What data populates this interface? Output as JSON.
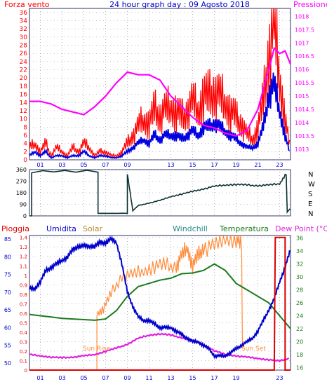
{
  "colors": {
    "wind_red": "#ff0000",
    "gust_blue": "#0000e0",
    "pressure_magenta": "#ff00ff",
    "humidity_blue": "#0000cc",
    "solar_orange": "#ff8c3a",
    "temp_green": "#1a7a1a",
    "dewpoint_magenta": "#e020e0",
    "rain_red": "#dd0000",
    "direction_dark": "#0b3030",
    "grid": "#8080a0",
    "title_blue": "#0000cc",
    "solar_label": "#b5892a",
    "windchill_label": "#2a8a8a"
  },
  "top_panel": {
    "title": "24 hour graph day : 09 Agosto 2018",
    "left_label": "Forza vento",
    "right_label": "Pressione",
    "left_ticks": [
      "0",
      "2",
      "4",
      "6",
      "8",
      "10",
      "12",
      "14",
      "16",
      "18",
      "20",
      "22",
      "24",
      "26",
      "28",
      "30",
      "32",
      "34",
      "36"
    ],
    "right_ticks": [
      "1013",
      "1013.5",
      "1014",
      "1014.5",
      "1015",
      "1015.5",
      "1016",
      "1016.5",
      "1017",
      "1017.5",
      "1018"
    ],
    "hour_ticks": [
      "01",
      "03",
      "05",
      "07",
      "09",
      "13",
      "15",
      "17",
      "19",
      "21",
      "23"
    ]
  },
  "direction_panel": {
    "left_ticks": [
      "0",
      "90",
      "180",
      "270",
      "360"
    ],
    "compass": [
      "N",
      "W",
      "S",
      "E",
      "N"
    ]
  },
  "bottom_panel": {
    "labels": {
      "rain": "Pioggia",
      "humidity": "Umidita",
      "solar": "Solar",
      "windchill": "Windchill",
      "temperature": "Temperatura",
      "dewpoint": "Dew Point (°C)"
    },
    "rain_ticks": [
      "0",
      "0.1",
      "0.2",
      "0.3",
      "0.4",
      "0.5",
      "0.6",
      "0.7",
      "0.8",
      "0.9",
      "1",
      "1.1",
      "1.2",
      "1.3",
      "1.4"
    ],
    "humidity_ticks": [
      "50",
      "55",
      "60",
      "65",
      "70",
      "75",
      "80",
      "85"
    ],
    "temp_ticks": [
      "16",
      "18",
      "20",
      "22",
      "24",
      "26",
      "28",
      "30",
      "32",
      "34",
      "36"
    ],
    "hour_ticks": [
      "01",
      "03",
      "05",
      "07",
      "09",
      "11",
      "13",
      "15",
      "17",
      "19",
      "23"
    ],
    "sunrise": "Sun Rise",
    "sunset": "Sun Set"
  },
  "chart_data": [
    {
      "type": "line",
      "title": "24 hour graph day : 09 Agosto 2018",
      "x_unit": "hour",
      "xlim": [
        0,
        24
      ],
      "ylabel": "Forza vento",
      "ylim": [
        0,
        37
      ],
      "y2label": "Pressione",
      "y2lim": [
        1012.6,
        1018.3
      ],
      "series": [
        {
          "axis": "left",
          "x": [
            0,
            0.5,
            1,
            1.5,
            2,
            2.5,
            3,
            3.5,
            4,
            4.5,
            5,
            5.5,
            6,
            6.5,
            7,
            7.5,
            8,
            8.5,
            9,
            9.5,
            10,
            10.5,
            11,
            11.5,
            12,
            12.5,
            13,
            13.5,
            14,
            14.5,
            15,
            15.5,
            16,
            16.5,
            17,
            17.5,
            18,
            18.5,
            19,
            19.5,
            20,
            20.5,
            21,
            21.5,
            22,
            22.5,
            23,
            23.5,
            24
          ],
          "values": [
            3,
            4,
            2,
            4,
            1,
            3,
            2,
            1,
            3,
            2,
            4,
            3,
            1,
            2,
            2,
            1,
            1,
            2,
            4,
            6,
            8,
            10,
            9,
            12,
            11,
            12,
            13,
            12,
            10,
            12,
            14,
            12,
            16,
            15,
            17,
            15,
            14,
            12,
            10,
            9,
            6,
            5,
            8,
            14,
            26,
            34,
            20,
            10,
            2
          ]
        },
        {
          "axis": "left",
          "x": [
            0,
            0.5,
            1,
            1.5,
            2,
            2.5,
            3,
            3.5,
            4,
            4.5,
            5,
            5.5,
            6,
            6.5,
            7,
            7.5,
            8,
            8.5,
            9,
            9.5,
            10,
            10.5,
            11,
            11.5,
            12,
            12.5,
            13,
            13.5,
            14,
            14.5,
            15,
            15.5,
            16,
            16.5,
            17,
            17.5,
            18,
            18.5,
            19,
            19.5,
            20,
            20.5,
            21,
            21.5,
            22,
            22.5,
            23,
            23.5,
            24
          ],
          "values": [
            1,
            2,
            1,
            2,
            0.5,
            1,
            1,
            0.5,
            1,
            1,
            2,
            1,
            0.5,
            1,
            1,
            0.5,
            0.5,
            1,
            2,
            3,
            4,
            5,
            4,
            6,
            5,
            6,
            6,
            6,
            5,
            6,
            7,
            6,
            8,
            8,
            9,
            8,
            7,
            6,
            5,
            4,
            3,
            3,
            4,
            8,
            16,
            18,
            12,
            6,
            1
          ]
        },
        {
          "axis": "right",
          "x": [
            0,
            1,
            2,
            3,
            4,
            5,
            6,
            7,
            8,
            9,
            10,
            11,
            12,
            13,
            14,
            15,
            16,
            17,
            18,
            19,
            20,
            21,
            22,
            22.5,
            23,
            23.5,
            24
          ],
          "values": [
            1014.8,
            1014.8,
            1014.7,
            1014.5,
            1014.4,
            1014.3,
            1014.6,
            1015.0,
            1015.5,
            1015.9,
            1015.8,
            1015.8,
            1015.6,
            1015.0,
            1014.6,
            1014.2,
            1013.9,
            1013.8,
            1013.6,
            1013.5,
            1013.7,
            1014.5,
            1016.0,
            1016.8,
            1016.6,
            1016.7,
            1016.2
          ]
        }
      ]
    },
    {
      "type": "line",
      "x_unit": "hour",
      "xlim": [
        0,
        24
      ],
      "ylim": [
        0,
        360
      ],
      "compass_labels": [
        "N",
        "W",
        "S",
        "E",
        "N"
      ],
      "series": [
        {
          "x": [
            0,
            0.2,
            0.2,
            6.3,
            6.3,
            9,
            9,
            9.5,
            10,
            11,
            12,
            13,
            14,
            15,
            16,
            17,
            18,
            19,
            20,
            21,
            22,
            23,
            23.6,
            23.7,
            24
          ],
          "values": [
            0,
            0,
            345,
            345,
            20,
            20,
            330,
            40,
            80,
            100,
            120,
            150,
            170,
            190,
            210,
            230,
            240,
            245,
            240,
            235,
            240,
            250,
            330,
            30,
            60
          ]
        }
      ]
    },
    {
      "type": "line",
      "x_unit": "hour",
      "xlim": [
        0,
        24
      ],
      "series": [
        {
          "axis": "rain",
          "ylim": [
            0,
            1.42
          ],
          "x": [
            0,
            22.5,
            22.6,
            23.5,
            23.5,
            24
          ],
          "values": [
            0,
            0,
            1.4,
            1.4,
            0,
            0
          ]
        },
        {
          "axis": "humidity",
          "ylim": [
            48,
            86
          ],
          "x": [
            0,
            0.5,
            1,
            1.5,
            2,
            2.5,
            3,
            3.5,
            4,
            4.5,
            5,
            5.5,
            6,
            6.5,
            7,
            7.5,
            8,
            8.5,
            9,
            9.5,
            10,
            10.5,
            11,
            11.5,
            12,
            12.5,
            13,
            13.5,
            14,
            14.5,
            15,
            15.5,
            16,
            16.5,
            17,
            17.5,
            18,
            18.5,
            19,
            19.5,
            20,
            20.5,
            21,
            21.5,
            22,
            22.5,
            23,
            23.5,
            24
          ],
          "values": [
            71,
            71,
            73,
            76,
            77,
            78,
            79,
            80,
            82,
            83,
            83,
            83,
            83,
            84,
            84,
            85,
            84,
            78,
            70,
            66,
            63,
            62,
            62,
            61,
            60,
            60,
            60,
            59,
            58,
            57,
            56,
            56,
            55,
            54,
            52,
            52,
            52,
            53,
            54,
            55,
            56,
            57,
            59,
            62,
            65,
            68,
            73,
            77,
            82
          ]
        },
        {
          "axis": "temp",
          "ylim": [
            15.6,
            36.4
          ],
          "x": [
            0,
            1,
            2,
            3,
            4,
            5,
            6,
            7,
            8,
            9,
            10,
            11,
            12,
            13,
            14,
            15,
            16,
            17,
            18,
            19,
            20,
            21,
            22,
            23,
            24
          ],
          "values": [
            24.2,
            24,
            23.8,
            23.6,
            23.5,
            23.4,
            23.3,
            23.5,
            24.8,
            27,
            28.5,
            29,
            29.5,
            29.8,
            30.5,
            30.6,
            31,
            32,
            31,
            29,
            28,
            27,
            26,
            24,
            22
          ]
        },
        {
          "axis": "temp",
          "ylim": [
            15.6,
            36.4
          ],
          "x": [
            0,
            1,
            2,
            3,
            4,
            5,
            6,
            7,
            8,
            9,
            10,
            11,
            12,
            13,
            14,
            15,
            16,
            17,
            18,
            19,
            20,
            21,
            22,
            23,
            24
          ],
          "values": [
            18,
            17.8,
            17.6,
            17.5,
            17.6,
            17.8,
            18.0,
            18.5,
            19.0,
            19.6,
            20.5,
            21.0,
            21.2,
            21.0,
            20.6,
            20.2,
            19.5,
            18.6,
            18.0,
            17.8,
            17.6,
            17.4,
            17.2,
            17.0,
            17.5
          ]
        },
        {
          "axis": "solar",
          "ylim": [
            0,
            1.42
          ],
          "x": [
            6.2,
            6.2,
            6.8,
            7.5,
            8.5,
            9.5,
            10.5,
            11.5,
            12.5,
            13.5,
            14,
            14.5,
            15,
            15.5,
            16,
            17,
            18,
            19,
            19.5,
            19.6
          ],
          "values": [
            0,
            0.6,
            0.65,
            0.8,
            1.0,
            1.0,
            1.05,
            1.1,
            1.1,
            1.1,
            1.2,
            1.3,
            1.1,
            1.2,
            1.3,
            1.3,
            1.4,
            1.4,
            1.3,
            0
          ]
        }
      ]
    }
  ]
}
